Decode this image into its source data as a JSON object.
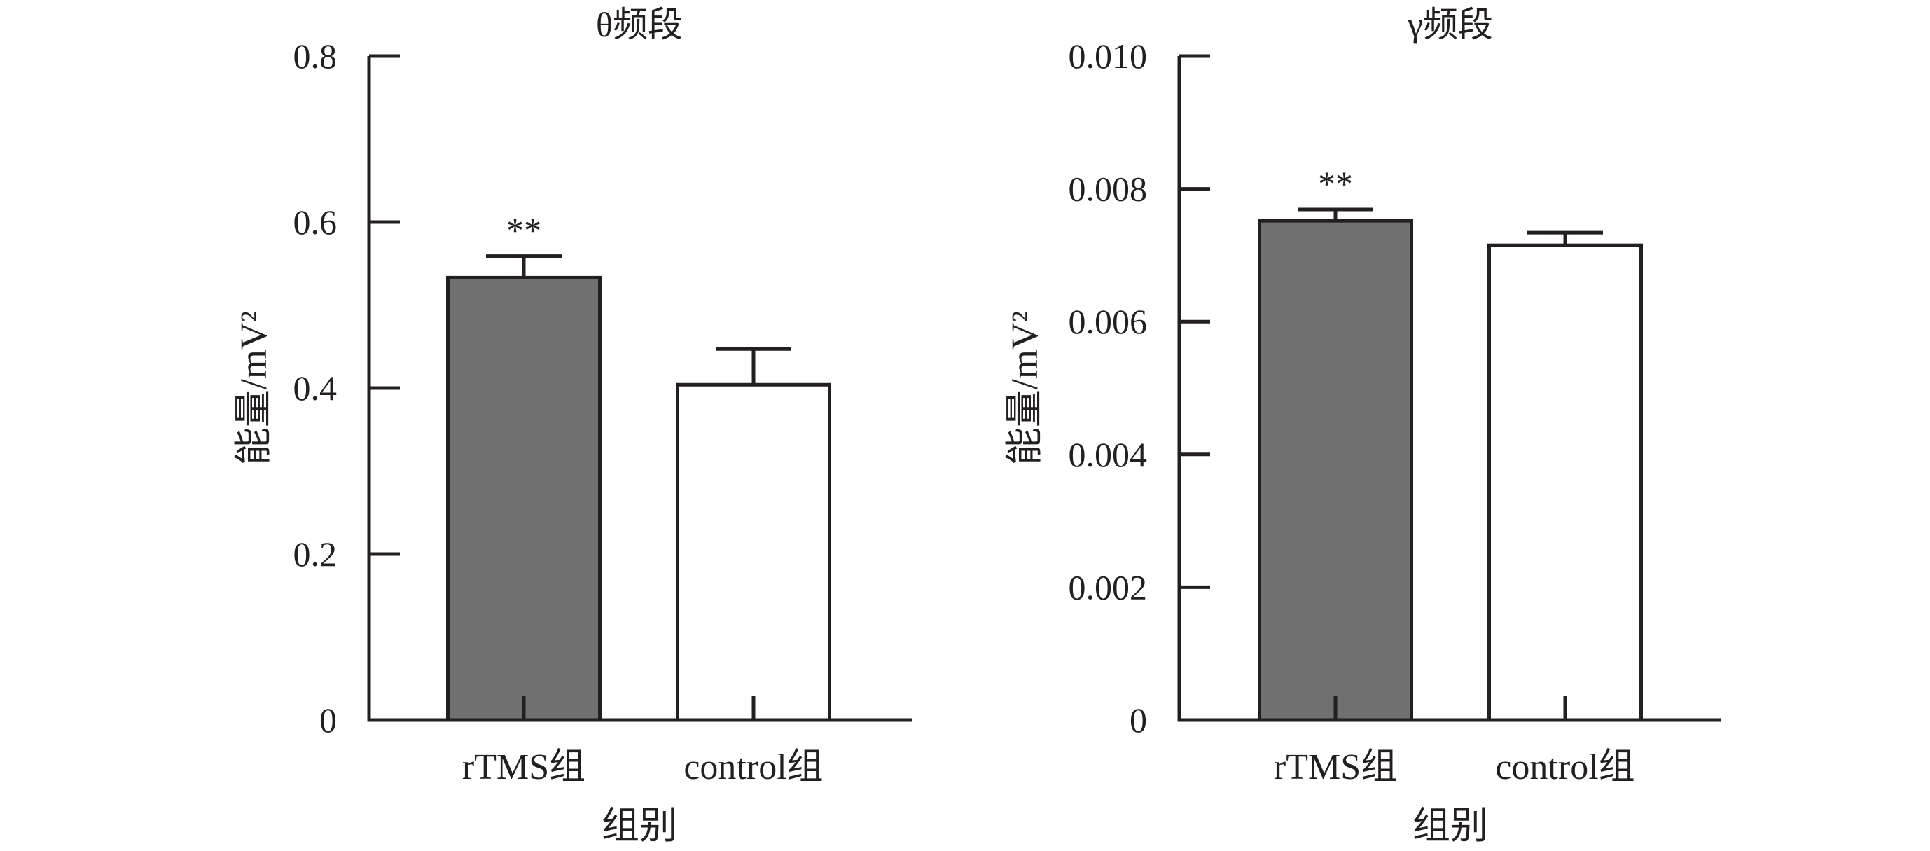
{
  "chart_data": [
    {
      "type": "bar",
      "title": "θ频段",
      "xlabel": "组别",
      "ylabel": "能量/mV²",
      "categories": [
        "rTMS组",
        "control组"
      ],
      "values": [
        0.533,
        0.404
      ],
      "error_upper": [
        0.026,
        0.043
      ],
      "annotations": [
        {
          "category_index": 0,
          "text": "**"
        }
      ],
      "ylim": [
        0,
        0.8
      ],
      "yticks": [
        0,
        0.2,
        0.4,
        0.6,
        0.8
      ],
      "ytick_labels": [
        "0",
        "0.2",
        "0.4",
        "0.6",
        "0.8"
      ],
      "bar_colors": [
        "#717071",
        "#ffffff"
      ],
      "grid": false
    },
    {
      "type": "bar",
      "title": "γ频段",
      "xlabel": "组别",
      "ylabel": "能量/mV²",
      "categories": [
        "rTMS组",
        "control组"
      ],
      "values": [
        0.00752,
        0.00715
      ],
      "error_upper": [
        0.00017,
        0.00019
      ],
      "annotations": [
        {
          "category_index": 0,
          "text": "**"
        }
      ],
      "ylim": [
        0,
        0.01
      ],
      "yticks": [
        0,
        0.002,
        0.004,
        0.006,
        0.008,
        0.01
      ],
      "ytick_labels": [
        "0",
        "0.002",
        "0.004",
        "0.006",
        "0.008",
        "0.010"
      ],
      "bar_colors": [
        "#717071",
        "#ffffff"
      ],
      "grid": false
    }
  ],
  "style": {
    "axis_color": "#231f20",
    "text_color": "#231f20",
    "background": "#ffffff"
  }
}
